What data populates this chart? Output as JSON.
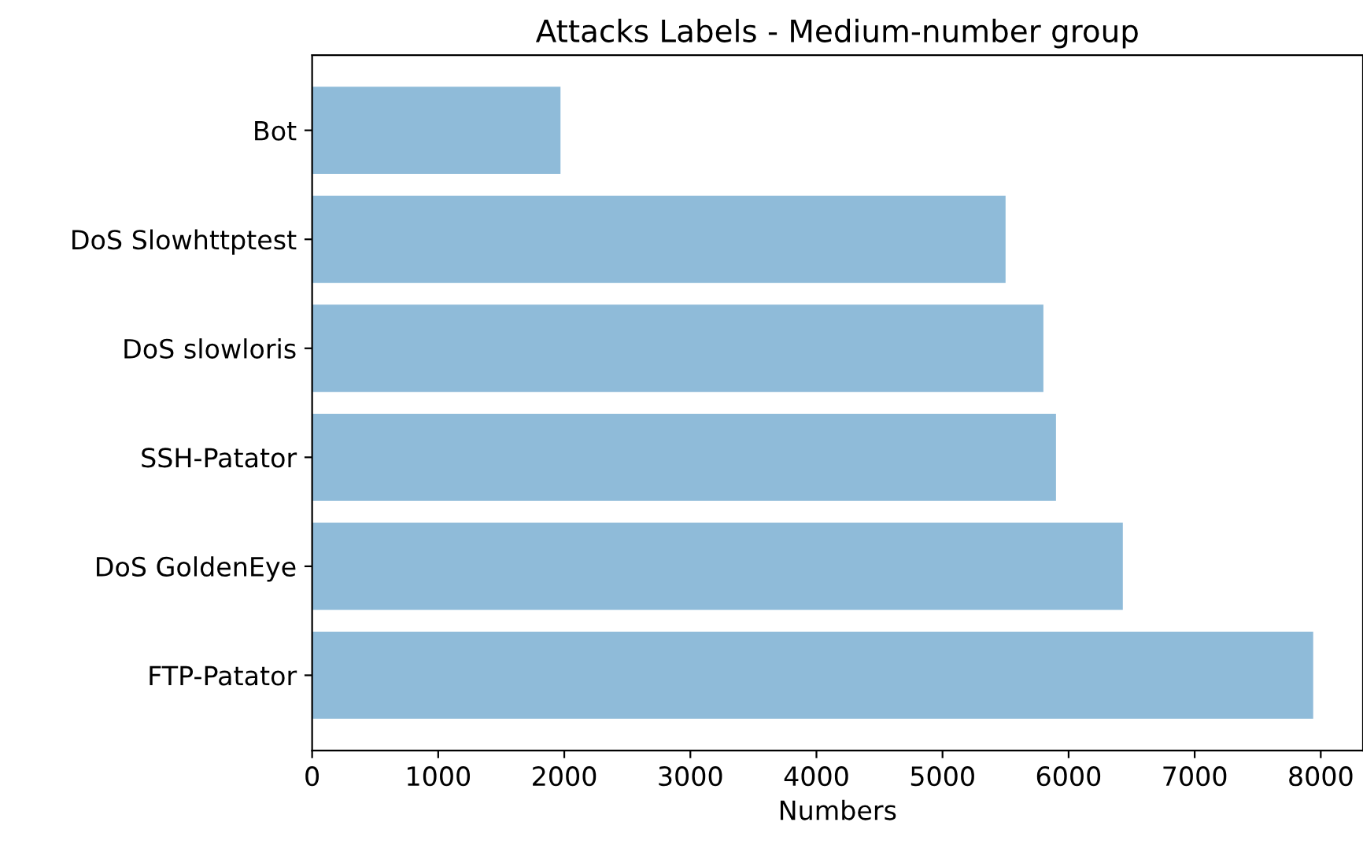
{
  "chart_data": {
    "type": "bar",
    "orientation": "horizontal",
    "title": "Attacks Labels - Medium-number group",
    "xlabel": "Numbers",
    "categories": [
      "Bot",
      "DoS Slowhttptest",
      "DoS slowloris",
      "SSH-Patator",
      "DoS GoldenEye",
      "FTP-Patator"
    ],
    "values": [
      1970,
      5500,
      5800,
      5900,
      6430,
      7940
    ],
    "color": "#8fbbd9",
    "xlim": [
      0,
      8335
    ],
    "xticks": [
      0,
      1000,
      2000,
      3000,
      4000,
      5000,
      6000,
      7000,
      8000
    ],
    "grid": false,
    "legend": false
  }
}
